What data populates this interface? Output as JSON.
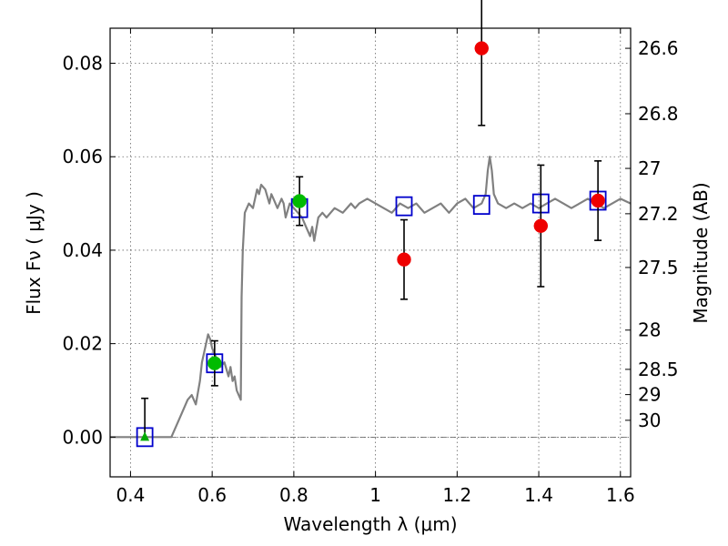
{
  "chart_data": {
    "type": "scatter",
    "xlabel": "Wavelength  λ (μm)",
    "ylabel": "Flux  Fν  ( μJy )",
    "ylabel_right": "Magnitude (AB)",
    "xlim": [
      0.35,
      1.625
    ],
    "ylim": [
      -0.0085,
      0.0875
    ],
    "x_ticks": [
      0.4,
      0.6,
      0.8,
      1.0,
      1.2,
      1.4,
      1.6
    ],
    "x_tick_labels": [
      "0.4",
      "0.6",
      "0.8",
      "1",
      "1.2",
      "1.4",
      "1.6"
    ],
    "y_ticks": [
      0.0,
      0.02,
      0.04,
      0.06,
      0.08
    ],
    "y_tick_labels": [
      "0.00",
      "0.02",
      "0.04",
      "0.06",
      "0.08"
    ],
    "right_axis_ticks": [
      {
        "label": "26.6",
        "flux": 0.0832
      },
      {
        "label": "26.8",
        "flux": 0.0692
      },
      {
        "label": "27",
        "flux": 0.0575
      },
      {
        "label": "27.2",
        "flux": 0.0478
      },
      {
        "label": "27.5",
        "flux": 0.0363
      },
      {
        "label": "28",
        "flux": 0.0229
      },
      {
        "label": "28.5",
        "flux": 0.0145
      },
      {
        "label": "29",
        "flux": 0.0091
      },
      {
        "label": "30",
        "flux": 0.0036
      }
    ],
    "grid": true,
    "zero_line": true,
    "series": [
      {
        "kind": "line",
        "color": "#808080",
        "x": [
          0.35,
          0.4,
          0.45,
          0.5,
          0.52,
          0.54,
          0.55,
          0.56,
          0.57,
          0.575,
          0.58,
          0.59,
          0.595,
          0.6,
          0.61,
          0.62,
          0.63,
          0.64,
          0.645,
          0.65,
          0.655,
          0.66,
          0.665,
          0.67,
          0.672,
          0.675,
          0.68,
          0.69,
          0.7,
          0.71,
          0.715,
          0.72,
          0.73,
          0.74,
          0.745,
          0.75,
          0.76,
          0.77,
          0.775,
          0.78,
          0.79,
          0.8,
          0.81,
          0.82,
          0.83,
          0.84,
          0.845,
          0.85,
          0.86,
          0.87,
          0.88,
          0.9,
          0.92,
          0.94,
          0.95,
          0.96,
          0.98,
          1.0,
          1.02,
          1.04,
          1.06,
          1.08,
          1.1,
          1.12,
          1.14,
          1.16,
          1.18,
          1.2,
          1.22,
          1.24,
          1.26,
          1.27,
          1.275,
          1.28,
          1.285,
          1.29,
          1.3,
          1.32,
          1.34,
          1.36,
          1.38,
          1.4,
          1.42,
          1.44,
          1.46,
          1.48,
          1.5,
          1.52,
          1.54,
          1.56,
          1.58,
          1.6,
          1.625
        ],
        "y": [
          0.0,
          0.0,
          0.0,
          0.0,
          0.004,
          0.008,
          0.009,
          0.007,
          0.012,
          0.016,
          0.018,
          0.022,
          0.021,
          0.019,
          0.017,
          0.015,
          0.016,
          0.013,
          0.015,
          0.012,
          0.013,
          0.01,
          0.009,
          0.008,
          0.03,
          0.04,
          0.048,
          0.05,
          0.049,
          0.053,
          0.052,
          0.054,
          0.053,
          0.05,
          0.052,
          0.051,
          0.049,
          0.051,
          0.05,
          0.047,
          0.05,
          0.049,
          0.048,
          0.047,
          0.045,
          0.043,
          0.045,
          0.042,
          0.047,
          0.048,
          0.047,
          0.049,
          0.048,
          0.05,
          0.049,
          0.05,
          0.051,
          0.05,
          0.049,
          0.048,
          0.05,
          0.049,
          0.05,
          0.048,
          0.049,
          0.05,
          0.048,
          0.05,
          0.051,
          0.049,
          0.05,
          0.052,
          0.057,
          0.06,
          0.057,
          0.052,
          0.05,
          0.049,
          0.05,
          0.049,
          0.05,
          0.049,
          0.05,
          0.051,
          0.05,
          0.049,
          0.05,
          0.051,
          0.05,
          0.049,
          0.05,
          0.051,
          0.05
        ]
      },
      {
        "kind": "markers",
        "marker": "square",
        "color": "#0000cc",
        "x": [
          0.435,
          0.606,
          0.814,
          1.07,
          1.26,
          1.405,
          1.545
        ],
        "y": [
          0.0,
          0.0158,
          0.049,
          0.0494,
          0.0497,
          0.05,
          0.0506
        ]
      },
      {
        "kind": "markers",
        "marker": "circle",
        "color": "#00bb00",
        "x": [
          0.606,
          0.814
        ],
        "y": [
          0.0158,
          0.0505
        ],
        "err": [
          0.0048,
          0.0052
        ]
      },
      {
        "kind": "markers",
        "marker": "triangle",
        "color": "#00aa00",
        "x": [
          0.435
        ],
        "y": [
          0.0
        ],
        "err_upper": [
          0.0083
        ]
      },
      {
        "kind": "markers",
        "marker": "circle",
        "color": "#ee0000",
        "x": [
          1.07,
          1.26,
          1.405,
          1.545
        ],
        "y": [
          0.038,
          0.0832,
          0.0452,
          0.0506
        ],
        "err": [
          0.0085,
          0.0165,
          0.013,
          0.0085
        ]
      }
    ]
  }
}
